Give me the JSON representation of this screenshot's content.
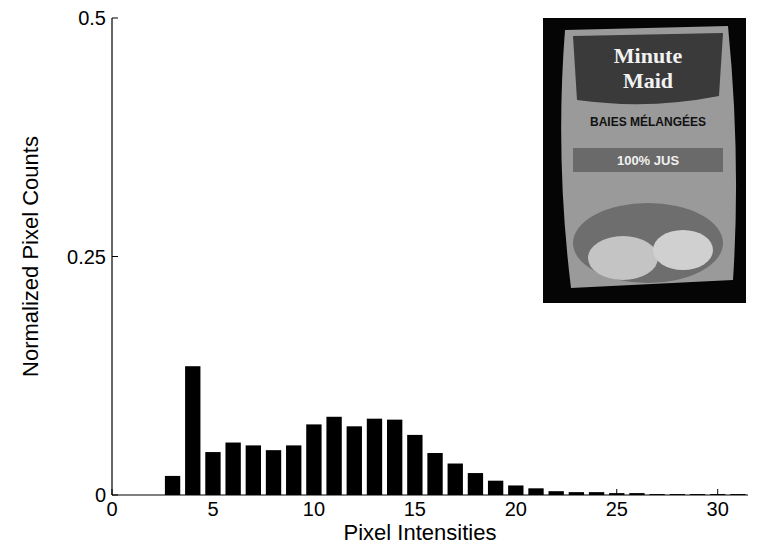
{
  "chart_data": {
    "type": "histogram",
    "x_label": "Pixel Intensities",
    "y_label": "Normalized Pixel Counts",
    "bins": [
      2.5,
      3.5,
      4.5,
      5.5,
      6.5,
      7.5,
      8.5,
      9.5,
      10.5,
      11.5,
      12.5,
      13.5,
      14.5,
      15.5,
      16.5,
      17.5,
      18.5,
      19.5,
      20.5,
      21.5,
      22.5,
      23.5,
      24.5,
      25.5,
      26.5,
      27.5,
      28.5,
      29.5,
      30.5,
      31.5
    ],
    "values": [
      0.02,
      0.135,
      0.045,
      0.055,
      0.052,
      0.047,
      0.052,
      0.074,
      0.082,
      0.072,
      0.08,
      0.079,
      0.063,
      0.044,
      0.033,
      0.023,
      0.015,
      0.01,
      0.007,
      0.004,
      0.003,
      0.003,
      0.002,
      0.002,
      0.001,
      0.001,
      0.001,
      0.001,
      0.001
    ],
    "color": "#000000",
    "xlim": [
      0,
      31.5
    ],
    "xticks": [
      0,
      5,
      10,
      15,
      20,
      25,
      30
    ],
    "ylim": [
      0,
      0.5
    ],
    "yticks": [
      0,
      0.25,
      0.5
    ],
    "grid": false,
    "annotations": [
      "Minute",
      "Maid",
      "BAIES MÉLANGÉES",
      "100% JUS"
    ]
  }
}
